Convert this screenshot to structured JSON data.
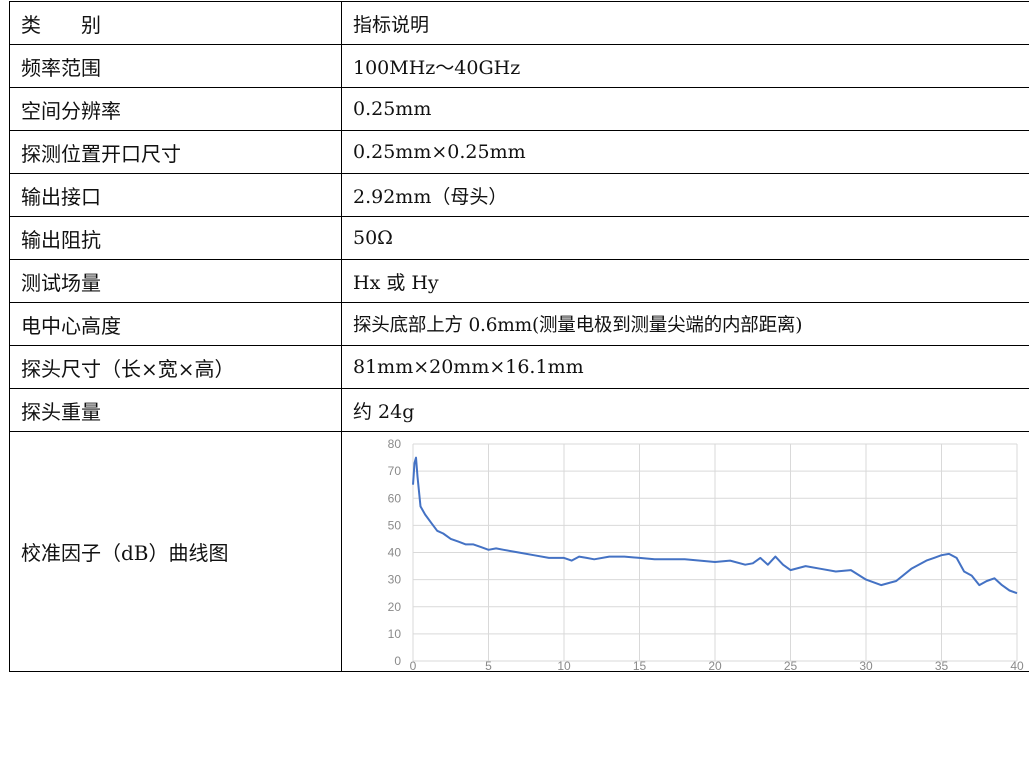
{
  "table": {
    "header": {
      "category": "类　　别",
      "description": "指标说明"
    },
    "rows": [
      {
        "label": "频率范围",
        "value": "100MHz～40GHz"
      },
      {
        "label": "空间分辨率",
        "value": "0.25mm"
      },
      {
        "label": "探测位置开口尺寸",
        "value": "0.25mm×0.25mm"
      },
      {
        "label": "输出接口",
        "value": "2.92mm（母头）"
      },
      {
        "label": "输出阻抗",
        "value": "50Ω"
      },
      {
        "label": "测试场量",
        "value": "Hx 或 Hy"
      },
      {
        "label": "电中心高度",
        "value": "探头底部上方 0.6mm(测量电极到测量尖端的内部距离)"
      },
      {
        "label": "探头尺寸（长×宽×高）",
        "value": "81mm×20mm×16.1mm"
      },
      {
        "label": "探头重量",
        "value": "约 24g"
      }
    ],
    "chart_row_label": "校准因子（dB）曲线图"
  },
  "colors": {
    "line": "#4472c4",
    "grid": "#d9d9d9",
    "border": "#000000"
  },
  "chart_data": {
    "type": "line",
    "title": "",
    "xlabel": "",
    "ylabel": "",
    "xlim": [
      0,
      40
    ],
    "ylim": [
      0,
      80
    ],
    "xticks": [
      0,
      5,
      10,
      15,
      20,
      25,
      30,
      35,
      40
    ],
    "yticks": [
      0,
      10,
      20,
      30,
      40,
      50,
      60,
      70,
      80
    ],
    "grid": true,
    "legend": "none",
    "series": [
      {
        "x": [
          0,
          0.1,
          0.2,
          0.3,
          0.5,
          0.8,
          1.2,
          1.6,
          2.0,
          2.5,
          3.0,
          3.5,
          4.0,
          4.5,
          5.0,
          5.5,
          6.0,
          7.0,
          8.0,
          9.0,
          10.0,
          10.5,
          11.0,
          11.5,
          12.0,
          13.0,
          14.0,
          15.0,
          16.0,
          17.0,
          18.0,
          19.0,
          20.0,
          21.0,
          22.0,
          22.5,
          23.0,
          23.5,
          24.0,
          24.5,
          25.0,
          26.0,
          27.0,
          28.0,
          29.0,
          30.0,
          31.0,
          32.0,
          33.0,
          34.0,
          34.5,
          35.0,
          35.5,
          36.0,
          36.5,
          37.0,
          37.5,
          38.0,
          38.5,
          39.0,
          39.5,
          40.0
        ],
        "y": [
          65,
          73,
          75,
          68,
          57,
          54,
          51,
          48,
          47,
          45,
          44,
          43,
          43,
          42,
          41,
          41.5,
          41,
          40,
          39,
          38,
          38,
          37,
          38.5,
          38,
          37.5,
          38.5,
          38.5,
          38,
          37.5,
          37.5,
          37.5,
          37,
          36.5,
          37,
          35.5,
          36,
          38,
          35.5,
          38.5,
          35.5,
          33.5,
          35,
          34,
          33,
          33.5,
          30,
          28,
          29.5,
          34,
          37,
          38,
          39,
          39.5,
          38,
          33,
          31.5,
          28,
          29.5,
          30.5,
          28,
          26,
          25
        ]
      }
    ]
  }
}
